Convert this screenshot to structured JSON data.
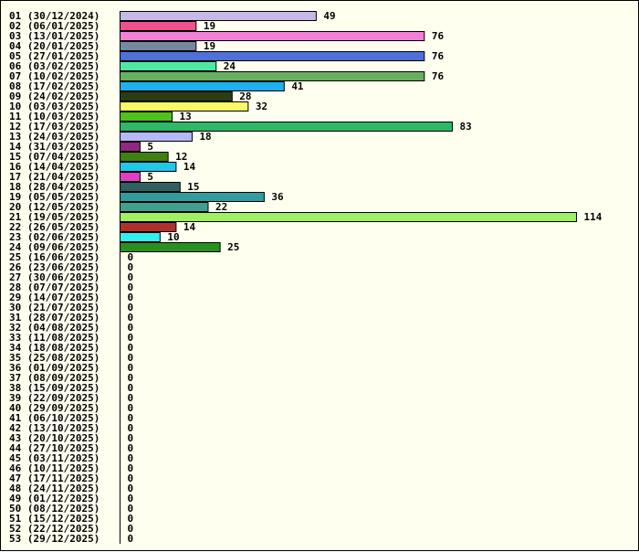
{
  "chart_data": {
    "type": "bar",
    "orientation": "horizontal",
    "categories": [
      "01 (30/12/2024)",
      "02 (06/01/2025)",
      "03 (13/01/2025)",
      "04 (20/01/2025)",
      "05 (27/01/2025)",
      "06 (03/02/2025)",
      "07 (10/02/2025)",
      "08 (17/02/2025)",
      "09 (24/02/2025)",
      "10 (03/03/2025)",
      "11 (10/03/2025)",
      "12 (17/03/2025)",
      "13 (24/03/2025)",
      "14 (31/03/2025)",
      "15 (07/04/2025)",
      "16 (14/04/2025)",
      "17 (21/04/2025)",
      "18 (28/04/2025)",
      "19 (05/05/2025)",
      "20 (12/05/2025)",
      "21 (19/05/2025)",
      "22 (26/05/2025)",
      "23 (02/06/2025)",
      "24 (09/06/2025)",
      "25 (16/06/2025)",
      "26 (23/06/2025)",
      "27 (30/06/2025)",
      "28 (07/07/2025)",
      "29 (14/07/2025)",
      "30 (21/07/2025)",
      "31 (28/07/2025)",
      "32 (04/08/2025)",
      "33 (11/08/2025)",
      "34 (18/08/2025)",
      "35 (25/08/2025)",
      "36 (01/09/2025)",
      "37 (08/09/2025)",
      "38 (15/09/2025)",
      "39 (22/09/2025)",
      "40 (29/09/2025)",
      "41 (06/10/2025)",
      "42 (13/10/2025)",
      "43 (20/10/2025)",
      "44 (27/10/2025)",
      "45 (03/11/2025)",
      "46 (10/11/2025)",
      "47 (17/11/2025)",
      "48 (24/11/2025)",
      "49 (01/12/2025)",
      "50 (08/12/2025)",
      "51 (15/12/2025)",
      "52 (22/12/2025)",
      "53 (29/12/2025)"
    ],
    "values": [
      49,
      19,
      76,
      19,
      76,
      24,
      76,
      41,
      28,
      32,
      13,
      83,
      18,
      5,
      12,
      14,
      5,
      15,
      36,
      22,
      114,
      14,
      10,
      25,
      0,
      0,
      0,
      0,
      0,
      0,
      0,
      0,
      0,
      0,
      0,
      0,
      0,
      0,
      0,
      0,
      0,
      0,
      0,
      0,
      0,
      0,
      0,
      0,
      0,
      0,
      0,
      0,
      0
    ],
    "colors": [
      "#c8b8e8",
      "#f0508c",
      "#f080d8",
      "#7888a0",
      "#5070d8",
      "#50e8a0",
      "#68b060",
      "#20b0f0",
      "#2c3c10",
      "#f8f868",
      "#50c020",
      "#30b868",
      "#b8b8f8",
      "#902880",
      "#408010",
      "#20c8e8",
      "#e040c0",
      "#306060",
      "#309ca0",
      "#40a090",
      "#a0f060",
      "#b03030",
      "#30f0f0",
      "#289020"
    ],
    "xlim": [
      0,
      114
    ],
    "grid": false,
    "legend": "none",
    "title": "",
    "xlabel": "",
    "ylabel": ""
  }
}
